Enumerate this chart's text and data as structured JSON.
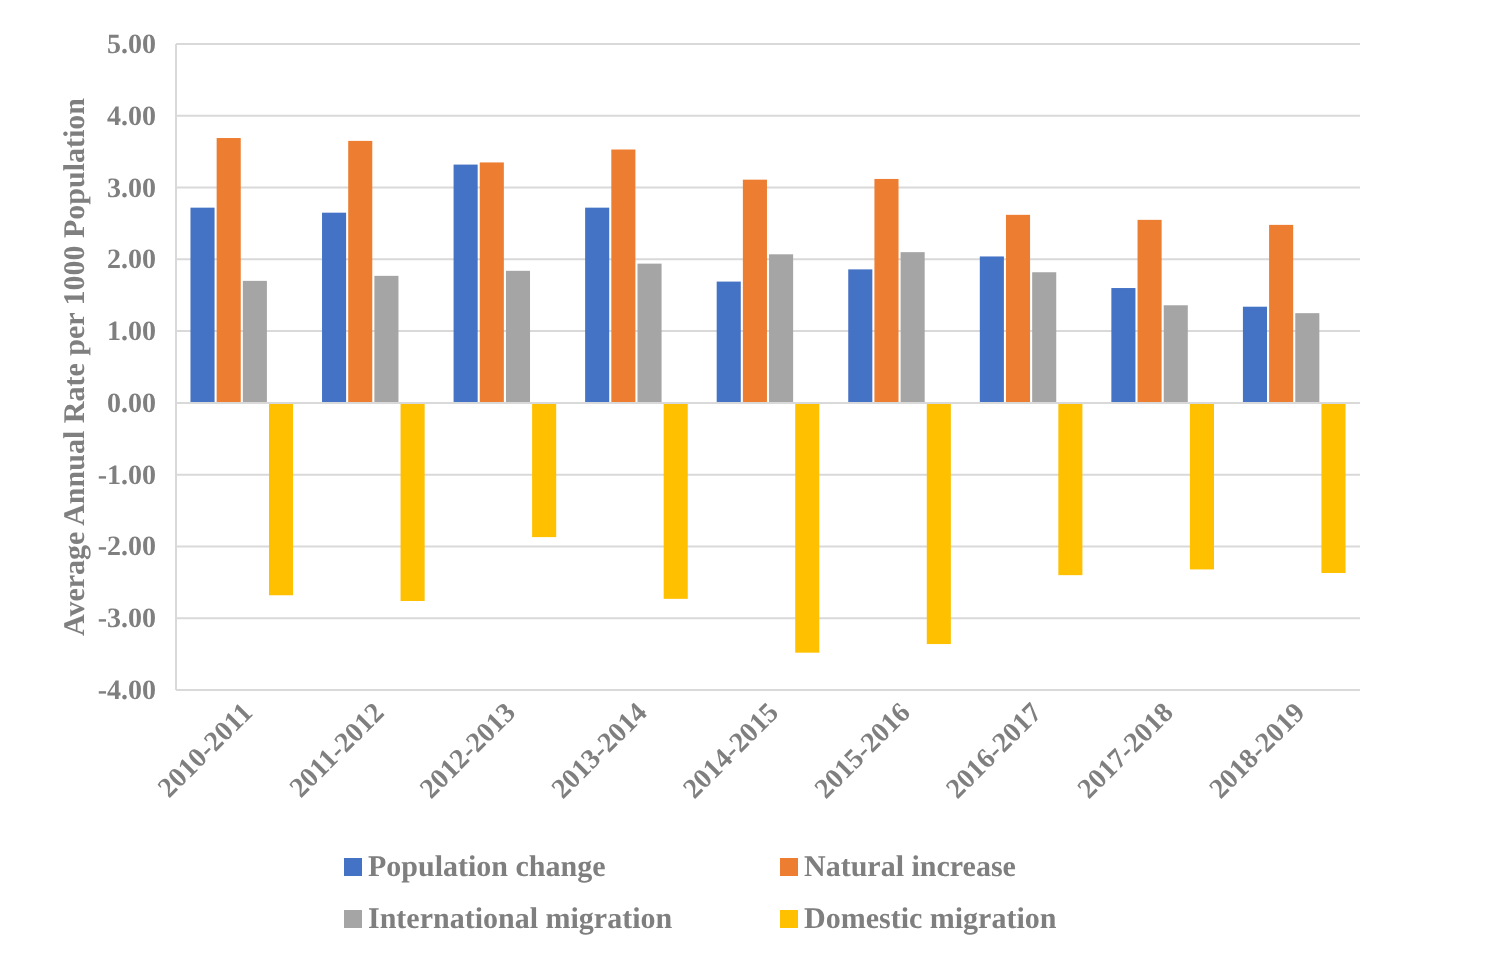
{
  "chart_data": {
    "type": "bar",
    "ylabel": "Average Annual Rate per 1000 Population",
    "categories": [
      "2010-2011",
      "2011-2012",
      "2012-2013",
      "2013-2014",
      "2014-2015",
      "2015-2016",
      "2016-2017",
      "2017-2018",
      "2018-2019"
    ],
    "series": [
      {
        "name": "Population change",
        "color": "#4472c4",
        "values": [
          2.72,
          2.65,
          3.32,
          2.72,
          1.69,
          1.86,
          2.04,
          1.6,
          1.34
        ]
      },
      {
        "name": "Natural increase",
        "color": "#ed7d31",
        "values": [
          3.69,
          3.65,
          3.35,
          3.53,
          3.11,
          3.12,
          2.62,
          2.55,
          2.48
        ]
      },
      {
        "name": "International migration",
        "color": "#a5a5a5",
        "values": [
          1.7,
          1.77,
          1.84,
          1.94,
          2.07,
          2.1,
          1.82,
          1.36,
          1.25
        ]
      },
      {
        "name": "Domestic migration",
        "color": "#ffc000",
        "values": [
          -2.68,
          -2.76,
          -1.87,
          -2.73,
          -3.48,
          -3.36,
          -2.4,
          -2.32,
          -2.37
        ]
      }
    ],
    "ylim": [
      -4,
      5
    ],
    "yticks": [
      {
        "value": -4,
        "label": "-4.00"
      },
      {
        "value": -3,
        "label": "-3.00"
      },
      {
        "value": -2,
        "label": "-2.00"
      },
      {
        "value": -1,
        "label": "-1.00"
      },
      {
        "value": 0,
        "label": "0.00"
      },
      {
        "value": 1,
        "label": "1.00"
      },
      {
        "value": 2,
        "label": "2.00"
      },
      {
        "value": 3,
        "label": "3.00"
      },
      {
        "value": 4,
        "label": "4.00"
      },
      {
        "value": 5,
        "label": "5.00"
      }
    ],
    "grid": "y",
    "legend": "bottom"
  }
}
